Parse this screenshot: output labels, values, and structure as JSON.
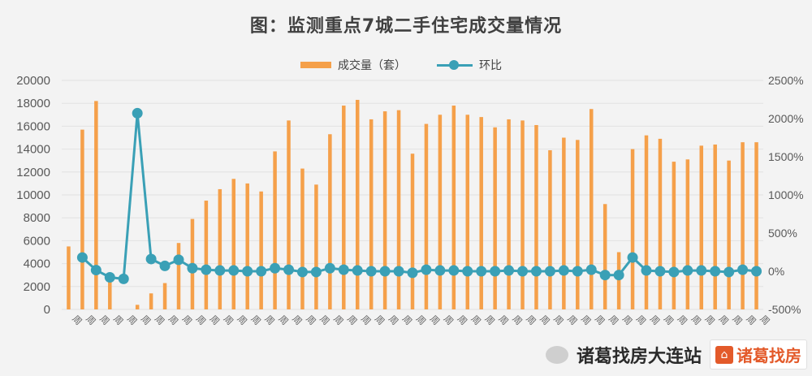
{
  "title": "图：监测重点7城二手住宅成交量情况",
  "legend": {
    "bar": "成交量（套）",
    "line": "环比"
  },
  "watermark": {
    "account": "诸葛找房大连站",
    "logo": "诸葛找房"
  },
  "colors": {
    "bar": "#f5a04a",
    "line": "#3aa0b6",
    "axis_text": "#595959"
  },
  "chart_data": {
    "type": "bar",
    "left_axis": {
      "min": 0,
      "max": 20000,
      "ticks": [
        0,
        2000,
        4000,
        6000,
        8000,
        10000,
        12000,
        14000,
        16000,
        18000,
        20000
      ]
    },
    "right_axis": {
      "min": -500,
      "max": 2500,
      "ticks": [
        "-500%",
        "0%",
        "500%",
        "1000%",
        "1500%",
        "2000%",
        "2500%"
      ]
    },
    "x_tick_text": "周",
    "series": [
      {
        "name": "成交量（套）",
        "type": "bar",
        "values": [
          5500,
          15700,
          18200,
          2800,
          0,
          400,
          1400,
          2300,
          5800,
          7900,
          9500,
          10500,
          11400,
          11000,
          10300,
          13800,
          16500,
          12300,
          10900,
          15300,
          17800,
          18300,
          16600,
          17300,
          17400,
          13600,
          16200,
          17000,
          17800,
          17000,
          16800,
          15900,
          16600,
          16500,
          16100,
          13900,
          15000,
          14800,
          17500,
          9200,
          5000,
          14000,
          15200,
          14900,
          12900,
          13100,
          14300,
          14400,
          13000,
          14600,
          14600
        ]
      },
      {
        "name": "环比",
        "type": "line",
        "values": [
          null,
          180,
          15,
          -80,
          -100,
          2070,
          160,
          70,
          150,
          40,
          20,
          10,
          10,
          0,
          0,
          40,
          20,
          -10,
          -10,
          40,
          20,
          10,
          0,
          0,
          0,
          -20,
          20,
          10,
          10,
          0,
          0,
          0,
          10,
          0,
          0,
          0,
          10,
          0,
          20,
          -50,
          -50,
          180,
          10,
          0,
          -10,
          10,
          10,
          0,
          -10,
          20,
          0
        ]
      }
    ]
  }
}
